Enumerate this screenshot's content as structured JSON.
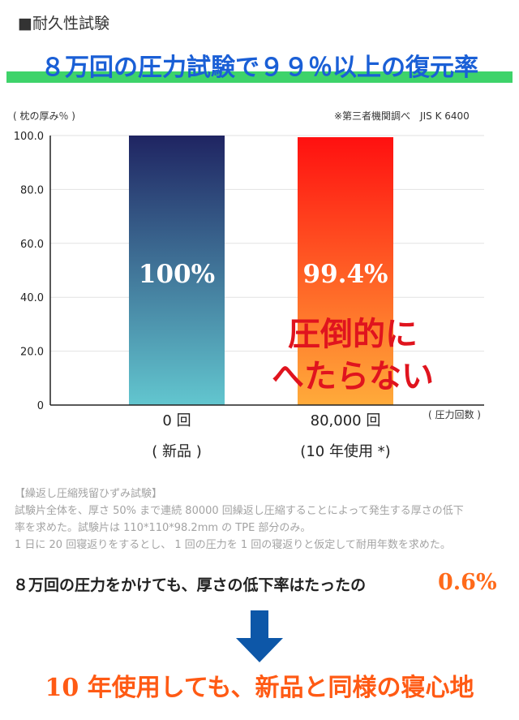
{
  "section_heading": "■耐久性試験",
  "headline": "８万回の圧力試験で９９％以上の復元率",
  "chart_data": {
    "type": "bar",
    "categories": [
      "0 回",
      "80,000 回"
    ],
    "category_sublabels": [
      "( 新品 )",
      "(10 年使用 *)"
    ],
    "values": [
      100,
      99.4
    ],
    "data_labels": [
      "100%",
      "99.4%"
    ],
    "ylabel": "( 枕の厚み％ )",
    "xlabel": "( 圧力回数 )",
    "ylim": [
      0,
      100
    ],
    "yticks": [
      "0",
      "20.0",
      "40.0",
      "60.0",
      "80.0",
      "100.0"
    ],
    "grid": true,
    "bar_colors": [
      [
        "#1f2462",
        "#62c6cf"
      ],
      [
        "#ff1010",
        "#ffab3a"
      ]
    ],
    "annotation": [
      "圧倒的に",
      "へたらない"
    ],
    "source_note": "※第三者機関調べ　JIS K 6400"
  },
  "method": {
    "title": "【繰返し圧縮残留ひずみ試験】",
    "lines": [
      "試験片全体を、厚さ 50% まで連続 80000 回繰返し圧縮することによって発生する厚さの低下",
      "率を求めた。試験片は 110*110*98.2mm の TPE 部分のみ。",
      "1 日に 20 回寝返りをするとし、 1 回の圧力を 1 回の寝返りと仮定して耐用年数を求めた。"
    ]
  },
  "summary": {
    "text": "８万回の圧力をかけても、厚さの低下率はたったの",
    "value": "0.6%"
  },
  "conclusion": "10 年使用しても、新品と同様の寝心地",
  "colors": {
    "headline": "#1a5fd6",
    "highlight": "#3ed36a",
    "accent": "#ff5a14",
    "callout": "#e0141e",
    "arrow": "#0d57a8"
  },
  "icons": {
    "arrow": "arrow-down-icon"
  }
}
